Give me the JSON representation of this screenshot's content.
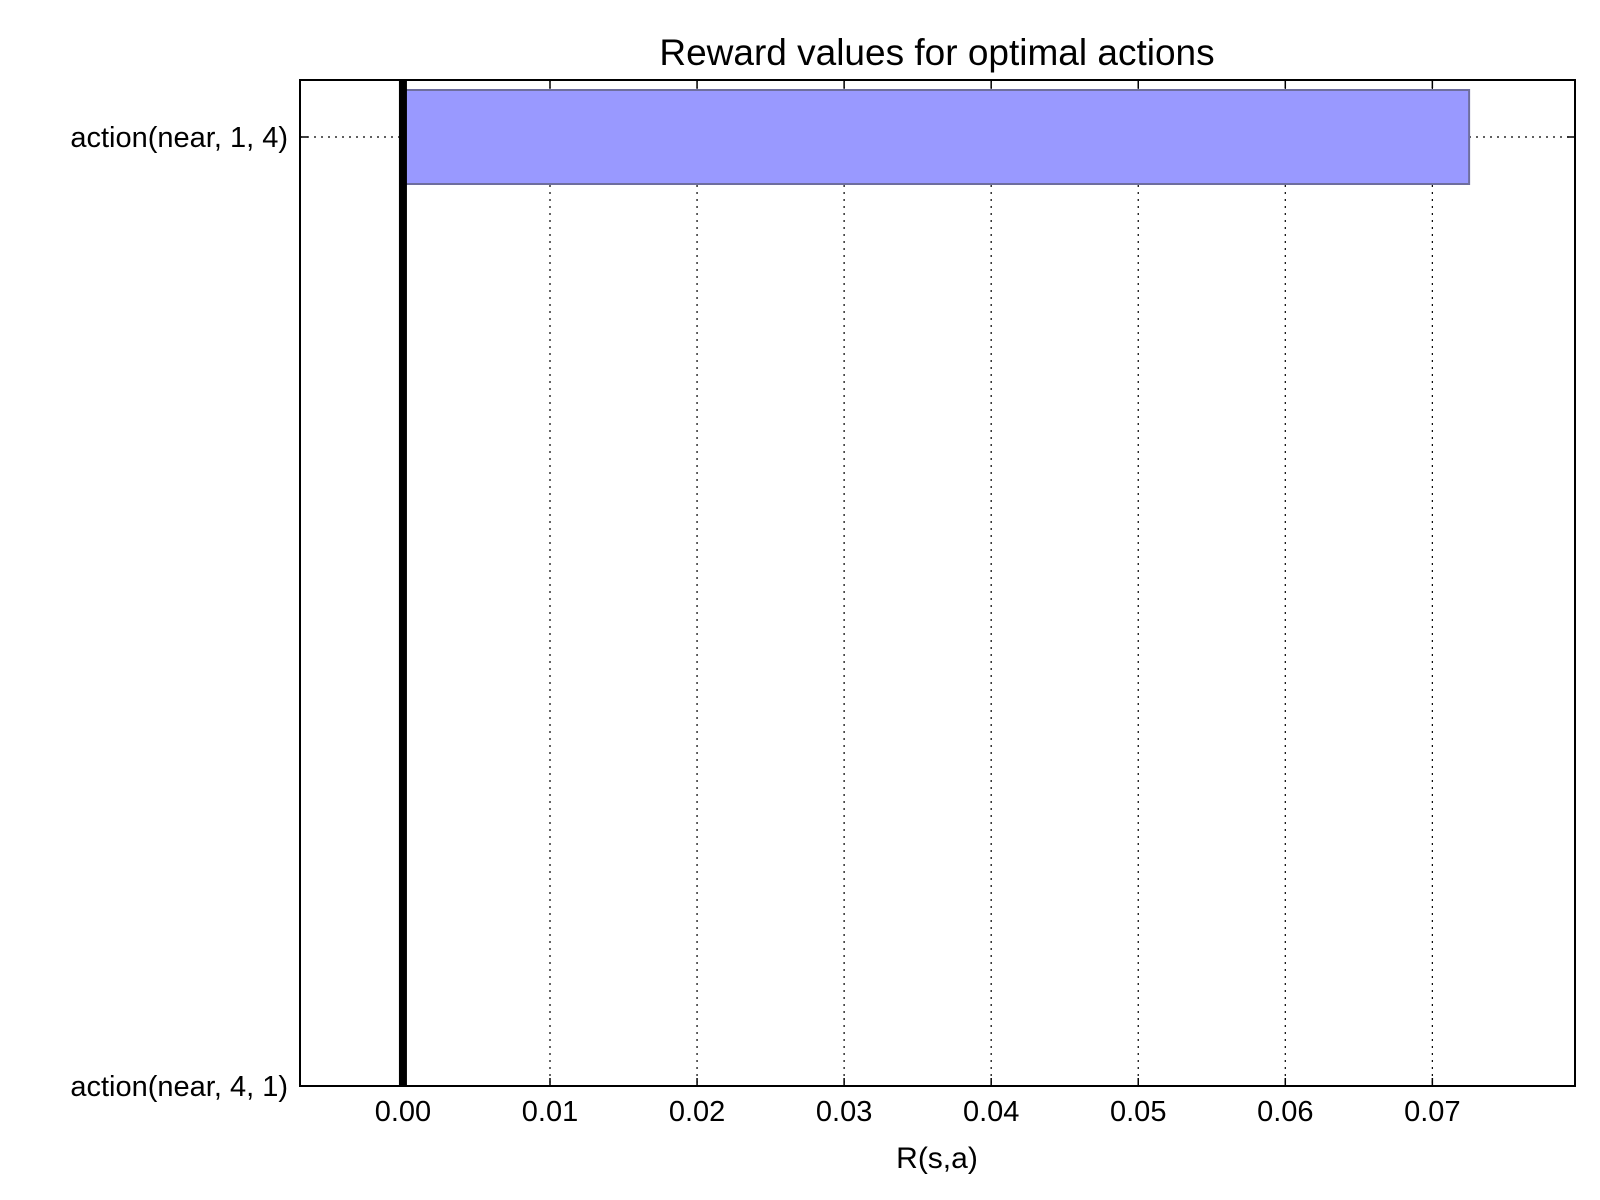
{
  "chart_data": {
    "type": "bar",
    "orientation": "horizontal",
    "title": "Reward values for optimal actions",
    "xlabel": "R(s,a)",
    "ylabel": "",
    "categories": [
      "action(near, 1, 4)",
      "action(near, 4, 1)"
    ],
    "values": [
      0.0725,
      0.0
    ],
    "xlim": [
      -0.007,
      0.0797
    ],
    "xticks": [
      0.0,
      0.01,
      0.02,
      0.03,
      0.04,
      0.05,
      0.06,
      0.07
    ],
    "xtick_labels": [
      "0.00",
      "0.01",
      "0.02",
      "0.03",
      "0.04",
      "0.05",
      "0.06",
      "0.07"
    ],
    "reference_line_x": 0.0,
    "grid": true,
    "legend": "none",
    "colors": {
      "bar_fill": "#9999ff",
      "bar_edge": "#6e6e9e",
      "axes": "#000000",
      "grid": "#000000",
      "reference_line": "#000000"
    }
  }
}
